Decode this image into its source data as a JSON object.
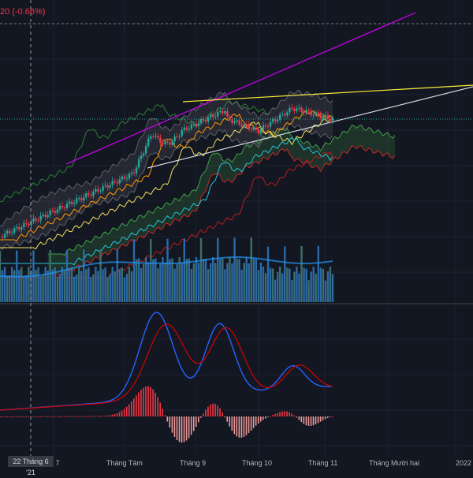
{
  "header": {
    "price_change": "20 (-0.66%)"
  },
  "crosshair": {
    "date_label": "22 Tháng 6 '21"
  },
  "time_axis": {
    "labels": [
      "g 7",
      "Tháng Tám",
      "Tháng 9",
      "Tháng 10",
      "Tháng 11",
      "Tháng Mười hai",
      "2022"
    ]
  },
  "colors": {
    "background": "#131722",
    "grid": "#1e222d",
    "candle_up": "#26a69a",
    "candle_down": "#f23645",
    "channel_line": "#d500f9",
    "upper_trendline": "#ffeb3b",
    "lower_trendline": "#d1d4dc",
    "volume_up": "#2b6aa8",
    "volume_down": "#3d6e6a",
    "macd_line": "#2962ff",
    "signal_line": "#d50000",
    "histogram_negative": "#f23645",
    "current_price_line": "#26a69a"
  },
  "icons": {
    "crosshair": "crosshair-icon"
  }
}
